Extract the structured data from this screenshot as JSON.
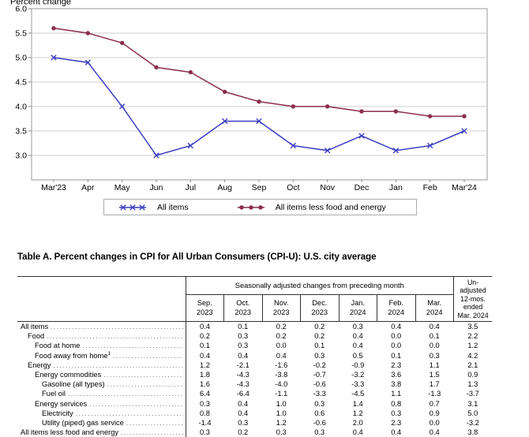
{
  "chart_data": {
    "type": "line",
    "title": "",
    "ylabel": "Percent change",
    "categories": [
      "Mar'23",
      "Apr",
      "May",
      "Jun",
      "Jul",
      "Aug",
      "Sep",
      "Oct",
      "Nov",
      "Dec",
      "Jan",
      "Feb",
      "Mar'24"
    ],
    "series": [
      {
        "name": "All items",
        "color": "#3d3dc4",
        "marker": "x",
        "values": [
          5.0,
          4.9,
          4.0,
          3.0,
          3.2,
          3.7,
          3.7,
          3.2,
          3.1,
          3.4,
          3.1,
          3.2,
          3.5
        ]
      },
      {
        "name": "All items less food and energy",
        "color": "#8b2e4e",
        "marker": "dot",
        "values": [
          5.6,
          5.5,
          5.3,
          4.8,
          4.7,
          4.3,
          4.1,
          4.0,
          4.0,
          3.9,
          3.9,
          3.8,
          3.8
        ]
      }
    ],
    "yticks": [
      "6.0",
      "5.5",
      "5.0",
      "4.5",
      "4.0",
      "3.5",
      "3.0"
    ],
    "ylim": [
      2.5,
      6.0
    ],
    "grid": "horizontal",
    "legend_position": "bottom-boxed",
    "colors": {
      "grid": "#cccccc",
      "frame": "#999999",
      "tick": "#888888",
      "text": "#000000"
    }
  },
  "table": {
    "title": "Table A. Percent changes in CPI for All Urban Consumers (CPI-U): U.S. city average",
    "group_header": "Seasonally adjusted changes from preceding month",
    "month_columns": [
      [
        "Sep.",
        "2023"
      ],
      [
        "Oct.",
        "2023"
      ],
      [
        "Nov.",
        "2023"
      ],
      [
        "Dec.",
        "2023"
      ],
      [
        "Jan.",
        "2024"
      ],
      [
        "Feb.",
        "2024"
      ],
      [
        "Mar.",
        "2024"
      ]
    ],
    "unadjusted_header_lines": [
      "Un-",
      "adjusted",
      "12-mos.",
      "ended",
      "Mar. 2024"
    ],
    "rows": [
      {
        "label": "All items",
        "indent": 0,
        "values": [
          "0.4",
          "0.1",
          "0.2",
          "0.2",
          "0.3",
          "0.4",
          "0.4"
        ],
        "unadjusted": "3.5"
      },
      {
        "label": "Food",
        "indent": 1,
        "values": [
          "0.2",
          "0.3",
          "0.2",
          "0.2",
          "0.4",
          "0.0",
          "0.1"
        ],
        "unadjusted": "2.2"
      },
      {
        "label": "Food at home",
        "indent": 2,
        "values": [
          "0.1",
          "0.3",
          "0.0",
          "0.1",
          "0.4",
          "0.0",
          "0.0"
        ],
        "unadjusted": "1.2"
      },
      {
        "label": "Food away from home",
        "footnote": "1",
        "indent": 2,
        "values": [
          "0.4",
          "0.4",
          "0.4",
          "0.3",
          "0.5",
          "0.1",
          "0.3"
        ],
        "unadjusted": "4.2"
      },
      {
        "label": "Energy",
        "indent": 1,
        "values": [
          "1.2",
          "-2.1",
          "-1.6",
          "-0.2",
          "-0.9",
          "2.3",
          "1.1"
        ],
        "unadjusted": "2.1"
      },
      {
        "label": "Energy commodities",
        "indent": 2,
        "values": [
          "1.8",
          "-4.3",
          "-3.8",
          "-0.7",
          "-3.2",
          "3.6",
          "1.5"
        ],
        "unadjusted": "0.9"
      },
      {
        "label": "Gasoline (all types)",
        "indent": 3,
        "values": [
          "1.6",
          "-4.3",
          "-4.0",
          "-0.6",
          "-3.3",
          "3.8",
          "1.7"
        ],
        "unadjusted": "1.3"
      },
      {
        "label": "Fuel oil",
        "indent": 3,
        "values": [
          "6.4",
          "-6.4",
          "-1.1",
          "-3.3",
          "-4.5",
          "1.1",
          "-1.3"
        ],
        "unadjusted": "-3.7"
      },
      {
        "label": "Energy services",
        "indent": 2,
        "values": [
          "0.3",
          "0.4",
          "1.0",
          "0.3",
          "1.4",
          "0.8",
          "0.7"
        ],
        "unadjusted": "3.1"
      },
      {
        "label": "Electricity",
        "indent": 3,
        "values": [
          "0.8",
          "0.4",
          "1.0",
          "0.6",
          "1.2",
          "0.3",
          "0.9"
        ],
        "unadjusted": "5.0"
      },
      {
        "label": "Utility (piped) gas service",
        "indent": 3,
        "values": [
          "-1.4",
          "0.3",
          "1.2",
          "-0.6",
          "2.0",
          "2.3",
          "0.0"
        ],
        "unadjusted": "-3.2"
      },
      {
        "label": "All items less food and energy",
        "indent": 0,
        "values": [
          "0.3",
          "0.2",
          "0.3",
          "0.3",
          "0.4",
          "0.4",
          "0.4"
        ],
        "unadjusted": "3.8"
      }
    ]
  }
}
